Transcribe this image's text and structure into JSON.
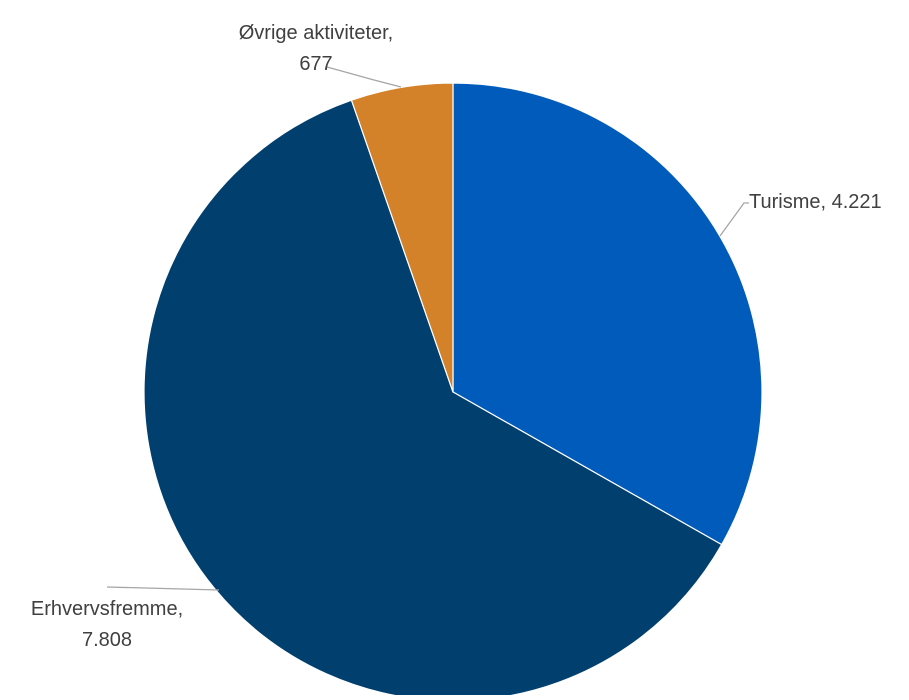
{
  "chart_data": {
    "type": "pie",
    "title": "",
    "slices": [
      {
        "name": "Turisme",
        "value": 4221,
        "label_lines": [
          "Turisme, 4.221"
        ],
        "color": "#005BBB"
      },
      {
        "name": "Erhvervsfremme",
        "value": 7808,
        "label_lines": [
          "Erhvervsfremme,",
          "7.808"
        ],
        "color": "#003F6E"
      },
      {
        "name": "Øvrige aktiviteter",
        "value": 677,
        "label_lines": [
          "Øvrige aktiviteter,",
          "677"
        ],
        "color": "#D4822A"
      }
    ],
    "slice_order": "clockwise from 12 o'clock",
    "legend": "none",
    "label_style": "data labels with leader lines"
  }
}
